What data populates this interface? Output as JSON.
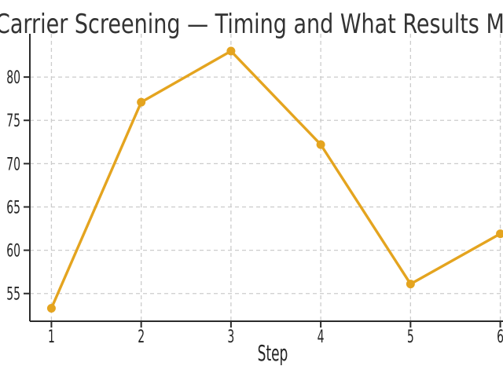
{
  "chart_data": {
    "type": "line",
    "title": "Carrier Screening — Timing and What Results Me",
    "xlabel": "Step",
    "ylabel": "",
    "x": [
      1,
      2,
      3,
      4,
      5,
      6
    ],
    "y": [
      53.3,
      77.1,
      83.0,
      72.2,
      56.1,
      61.9
    ],
    "x_ticks": [
      1,
      2,
      3,
      4,
      5,
      6
    ],
    "y_ticks": [
      55,
      60,
      65,
      70,
      75,
      80
    ],
    "xlim": [
      0.76,
      6.03
    ],
    "ylim": [
      51.8,
      85.0
    ],
    "grid": true,
    "legend": false,
    "series_name": "",
    "marker": "circle",
    "colors": {
      "line": "#E4A41F",
      "marker": "#E4A41F",
      "title_text": "#333333",
      "tick_text": "#262626",
      "axis": "#2b2b2b",
      "gridline": "#cccccc",
      "background": "#ffffff"
    }
  }
}
